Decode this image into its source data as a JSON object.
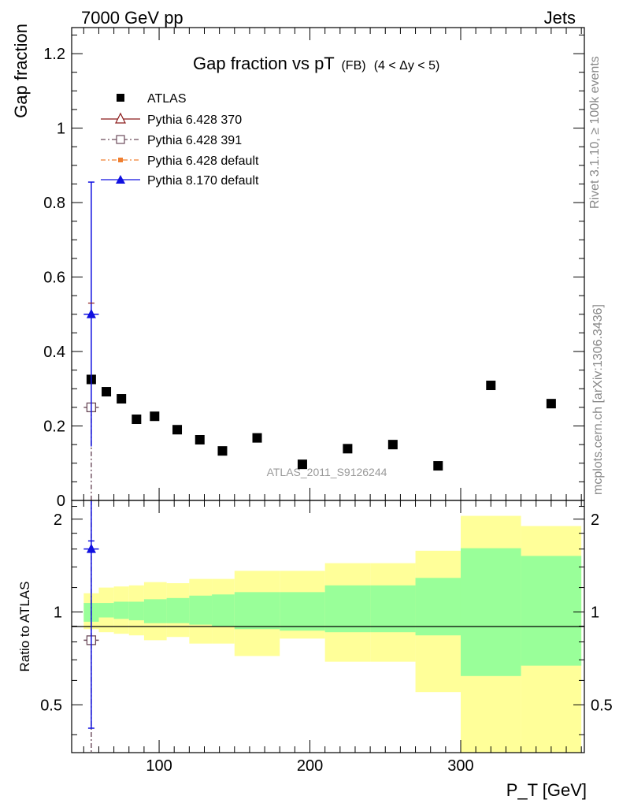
{
  "header": {
    "left": "7000 GeV pp",
    "right": "Jets"
  },
  "side_labels": {
    "rivet": "Rivet 3.1.10, ≥ 100k events",
    "mcplots": "mcplots.cern.ch [arXiv:1306.3436]"
  },
  "title": {
    "main": "Gap fraction vs pT",
    "fb": "(FB)",
    "range": "(4 < Δy < 5)"
  },
  "watermark": "ATLAS_2011_S9126244",
  "legend": [
    {
      "label": "ATLAS",
      "marker": "square-filled",
      "color": "#000000",
      "line": "none"
    },
    {
      "label": "Pythia 6.428 370",
      "marker": "triangle-open",
      "color": "#8b1a1a",
      "line": "solid"
    },
    {
      "label": "Pythia 6.428 391",
      "marker": "square-open",
      "color": "#6b4a5a",
      "line": "dashdot"
    },
    {
      "label": "Pythia 6.428 default",
      "marker": "square-filled-small",
      "color": "#f07f30",
      "line": "dashdot"
    },
    {
      "label": "Pythia 8.170 default",
      "marker": "triangle-filled",
      "color": "#1010e0",
      "line": "solid"
    }
  ],
  "colors": {
    "band_inner": "#99ff99",
    "band_outer": "#ffff99",
    "atlas": "#000000",
    "p6_370": "#8b1a1a",
    "p6_391": "#6b4a5a",
    "p6_default": "#f07f30",
    "p8": "#1010e0"
  },
  "chart_data": [
    {
      "type": "scatter",
      "ylabel": "Gap fraction",
      "xlim": [
        42,
        382
      ],
      "ylim": [
        0,
        1.27
      ],
      "y_ticks": [
        "0",
        "0.2",
        "0.4",
        "0.6",
        "0.8",
        "1",
        "1.2"
      ],
      "series": [
        {
          "name": "ATLAS",
          "x": [
            55,
            65,
            75,
            85,
            97,
            112,
            127,
            142,
            165,
            195,
            225,
            255,
            285,
            320,
            360
          ],
          "y": [
            0.325,
            0.292,
            0.273,
            0.218,
            0.226,
            0.19,
            0.163,
            0.133,
            0.168,
            0.097,
            0.139,
            0.15,
            0.093,
            0.309,
            0.26
          ]
        },
        {
          "name": "Pythia 8.170 default",
          "x": [
            55
          ],
          "y": [
            0.5
          ],
          "yerr_low": [
            0.355
          ],
          "yerr_high": [
            0.355
          ],
          "xerr": [
            5
          ]
        },
        {
          "name": "Pythia 6.428 391",
          "x": [
            55
          ],
          "y": [
            0.25
          ],
          "xerr": [
            5
          ]
        }
      ]
    },
    {
      "type": "scatter",
      "ylabel": "Ratio to ATLAS",
      "xlabel": "P_T [GeV]",
      "xlim": [
        42,
        382
      ],
      "ylim": [
        0.35,
        2.3
      ],
      "log_y": true,
      "x_ticks": [
        "100",
        "200",
        "300"
      ],
      "y_ticks": [
        "0.5",
        "1",
        "2"
      ],
      "bands": {
        "x_edges": [
          50,
          60,
          70,
          80,
          90,
          105,
          120,
          135,
          150,
          180,
          210,
          240,
          270,
          300,
          340,
          380
        ],
        "inner_low": [
          0.93,
          0.96,
          0.95,
          0.94,
          0.92,
          0.92,
          0.91,
          0.9,
          0.88,
          0.87,
          0.86,
          0.86,
          0.84,
          0.62,
          0.67,
          0.36
        ],
        "inner_high": [
          1.07,
          1.07,
          1.08,
          1.08,
          1.1,
          1.11,
          1.13,
          1.14,
          1.16,
          1.16,
          1.22,
          1.22,
          1.29,
          1.61,
          1.52,
          1.85
        ],
        "outer_low": [
          0.88,
          0.86,
          0.85,
          0.84,
          0.81,
          0.83,
          0.79,
          0.79,
          0.72,
          0.82,
          0.69,
          0.69,
          0.55,
          0.34,
          0.34,
          0.34
        ],
        "outer_high": [
          1.15,
          1.2,
          1.21,
          1.22,
          1.25,
          1.24,
          1.28,
          1.28,
          1.36,
          1.36,
          1.44,
          1.44,
          1.58,
          2.05,
          1.9,
          2.3
        ]
      },
      "series": [
        {
          "name": "Pythia 8.170 default",
          "x": [
            55
          ],
          "y": [
            1.6
          ],
          "yerr_low": [
            1.18
          ],
          "yerr_high": [
            0.1
          ],
          "xerr": [
            5
          ]
        },
        {
          "name": "Pythia 6.428 391",
          "x": [
            55
          ],
          "y": [
            0.81
          ],
          "xerr": [
            5
          ]
        }
      ]
    }
  ]
}
